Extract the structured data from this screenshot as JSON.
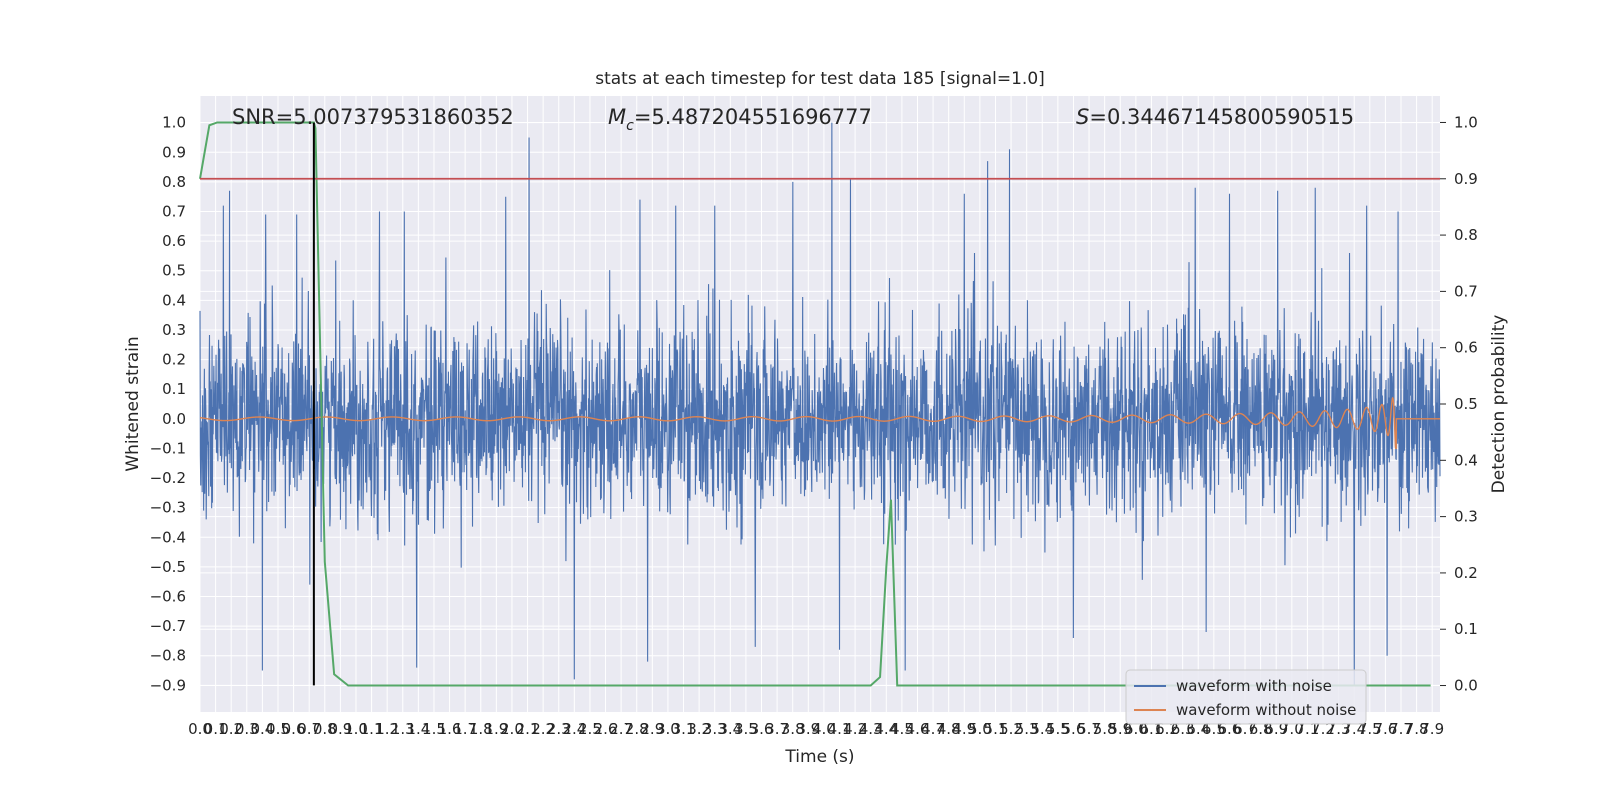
{
  "chart_data": {
    "type": "line",
    "title": "stats at each timestep for test data 185 [signal=1.0]",
    "xlabel": "Time (s)",
    "ylabel": "Whitened strain",
    "ylabel_right": "Detection probability",
    "xlim": [
      0.0,
      7.95
    ],
    "ylim": [
      -0.99,
      1.09
    ],
    "ylim_right": [
      -0.047,
      1.047
    ],
    "xticks": [
      0.0,
      0.1,
      0.2,
      0.3,
      0.4,
      0.5,
      0.6,
      0.7,
      0.8,
      0.9,
      1.0,
      1.1,
      1.2,
      1.3,
      1.4,
      1.5,
      1.6,
      1.7,
      1.8,
      1.9,
      2.0,
      2.1,
      2.2,
      2.3,
      2.4,
      2.5,
      2.6,
      2.7,
      2.8,
      2.9,
      3.0,
      3.1,
      3.2,
      3.3,
      3.4,
      3.5,
      3.6,
      3.7,
      3.8,
      3.9,
      4.0,
      4.1,
      4.2,
      4.3,
      4.4,
      4.5,
      4.6,
      4.7,
      4.8,
      4.9,
      5.0,
      5.1,
      5.2,
      5.3,
      5.4,
      5.5,
      5.6,
      5.7,
      5.8,
      5.9,
      6.0,
      6.1,
      6.2,
      6.3,
      6.4,
      6.5,
      6.6,
      6.7,
      6.8,
      6.9,
      7.0,
      7.1,
      7.2,
      7.3,
      7.4,
      7.5,
      7.6,
      7.7,
      7.8,
      7.9
    ],
    "xtick_labels": [
      "0.0",
      "0.1",
      "0.2",
      "0.3",
      "0.4",
      "0.5",
      "0.6",
      "0.7",
      "0.8",
      "0.9",
      "1.0",
      "1.1",
      "1.2",
      "1.3",
      "1.4",
      "1.5",
      "1.6",
      "1.7",
      "1.8",
      "1.9",
      "2.0",
      "2.1",
      "2.2",
      "2.3",
      "2.4",
      "2.5",
      "2.6",
      "2.7",
      "2.8",
      "2.9",
      "3.0",
      "3.1",
      "3.2",
      "3.3",
      "3.4",
      "3.5",
      "3.6",
      "3.7",
      "3.8",
      "3.9",
      "4.0",
      "4.1",
      "4.2",
      "4.3",
      "4.4",
      "4.5",
      "4.6",
      "4.7",
      "4.8",
      "4.9",
      "5.0",
      "5.1",
      "5.2",
      "5.3",
      "5.4",
      "5.5",
      "5.6",
      "5.7",
      "5.8",
      "5.9",
      "6.0",
      "6.1",
      "6.2",
      "6.3",
      "6.4",
      "6.5",
      "6.6",
      "6.7",
      "6.8",
      "6.9",
      "7.0",
      "7.1",
      "7.2",
      "7.3",
      "7.4",
      "7.5",
      "7.6",
      "7.7",
      "7.8",
      "7.9"
    ],
    "yticks_left": [
      -0.9,
      -0.8,
      -0.7,
      -0.6,
      -0.5,
      -0.4,
      -0.3,
      -0.2,
      -0.1,
      0.0,
      0.1,
      0.2,
      0.3,
      0.4,
      0.5,
      0.6,
      0.7,
      0.8,
      0.9,
      1.0
    ],
    "ytick_labels_left": [
      "−0.9",
      "−0.8",
      "−0.7",
      "−0.6",
      "−0.5",
      "−0.4",
      "−0.3",
      "−0.2",
      "−0.1",
      "0.0",
      "0.1",
      "0.2",
      "0.3",
      "0.4",
      "0.5",
      "0.6",
      "0.7",
      "0.8",
      "0.9",
      "1.0"
    ],
    "yticks_right": [
      0.0,
      0.1,
      0.2,
      0.3,
      0.4,
      0.5,
      0.6,
      0.7,
      0.8,
      0.9,
      1.0
    ],
    "ytick_labels_right": [
      "0.0",
      "0.1",
      "0.2",
      "0.3",
      "0.4",
      "0.5",
      "0.6",
      "0.7",
      "0.8",
      "0.9",
      "1.0"
    ],
    "annotations": {
      "snr": "SNR=5.007379531860352",
      "mc_symbol": "M",
      "mc_sub": "c",
      "mc_value": "=5.487204551696777",
      "s_symbol": "S",
      "s_value": "=0.34467145800590515"
    },
    "series": [
      {
        "name": "waveform with noise",
        "color": "#4c72b0",
        "axis": "left",
        "envelope": {
          "min_typical": -0.45,
          "max_typical": 0.45
        },
        "peaks": [
          [
            0.15,
            0.72
          ],
          [
            0.19,
            0.77
          ],
          [
            0.42,
            0.69
          ],
          [
            0.62,
            0.69
          ],
          [
            1.15,
            0.7
          ],
          [
            1.31,
            0.7
          ],
          [
            1.96,
            0.75
          ],
          [
            2.11,
            0.95
          ],
          [
            2.82,
            0.74
          ],
          [
            3.05,
            0.72
          ],
          [
            3.3,
            0.72
          ],
          [
            3.8,
            0.8
          ],
          [
            4.05,
            1.0
          ],
          [
            4.17,
            0.81
          ],
          [
            4.9,
            0.76
          ],
          [
            5.05,
            0.87
          ],
          [
            5.19,
            0.91
          ],
          [
            6.38,
            0.78
          ],
          [
            6.6,
            0.76
          ],
          [
            6.91,
            0.77
          ],
          [
            7.15,
            0.78
          ],
          [
            7.48,
            0.72
          ],
          [
            7.68,
            0.7
          ],
          [
            0.4,
            -0.85
          ],
          [
            1.39,
            -0.84
          ],
          [
            2.4,
            -0.88
          ],
          [
            2.87,
            -0.82
          ],
          [
            3.56,
            -0.77
          ],
          [
            4.1,
            -0.78
          ],
          [
            4.52,
            -0.85
          ],
          [
            5.6,
            -0.74
          ],
          [
            6.45,
            -0.72
          ],
          [
            7.4,
            -0.9
          ],
          [
            7.61,
            -0.8
          ]
        ]
      },
      {
        "name": "waveform without noise",
        "color": "#dd8452",
        "axis": "left",
        "chirp": {
          "t_start": 0.0,
          "t_merger": 7.67,
          "amp_start": 0.006,
          "amp_peak": 0.1,
          "freq_start_hz": 20
        }
      },
      {
        "name": "",
        "color": "#55a868",
        "axis": "right",
        "x": [
          0.0,
          0.06,
          0.11,
          0.18,
          0.3,
          0.5,
          0.73,
          0.74,
          0.8,
          0.86,
          0.95,
          1.5,
          2.0,
          3.0,
          3.5,
          4.0,
          4.2,
          4.3,
          4.36,
          4.4,
          4.43,
          4.47,
          5.0,
          6.0,
          7.0,
          7.89
        ],
        "y": [
          0.9,
          0.995,
          1.0,
          1.0,
          1.0,
          1.0,
          1.0,
          0.99,
          0.22,
          0.02,
          0.0,
          0.0,
          0.0,
          0.0,
          0.0,
          0.0,
          0.0,
          0.0,
          0.015,
          0.21,
          0.33,
          0.0,
          0.0,
          0.0,
          0.0,
          0.0
        ]
      },
      {
        "name": "",
        "color": "#c44e52",
        "axis": "right",
        "type": "hline",
        "y": 0.9
      },
      {
        "name": "",
        "color": "#000000",
        "axis": "left",
        "type": "vline",
        "x": 0.73,
        "y_range": [
          -0.9,
          1.0
        ]
      }
    ],
    "legend": {
      "placement": "lower-right"
    },
    "grid": true,
    "background": "#eaeaf2",
    "grid_color": "#ffffff"
  }
}
